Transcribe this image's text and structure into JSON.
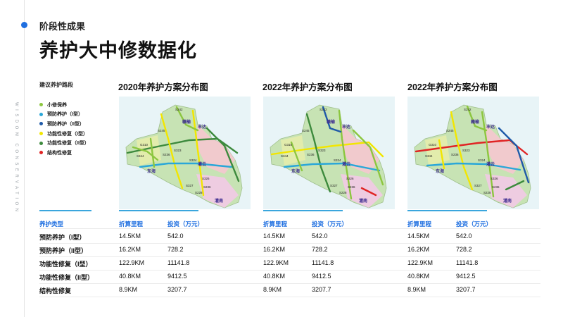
{
  "header": {
    "subtitle": "阶段性成果",
    "title": "养护大中修数据化",
    "side_text": "WISDOM CONSERVATION"
  },
  "legend": {
    "title": "建议养护路段",
    "items": [
      {
        "label": "小修保养",
        "color": "#8cc63f"
      },
      {
        "label": "预防养护（I型）",
        "color": "#2aa7d8"
      },
      {
        "label": "预防养护（II型）",
        "color": "#1f5aa8"
      },
      {
        "label": "功能性修复（I型）",
        "color": "#f2e600"
      },
      {
        "label": "功能性修复（II型）",
        "color": "#3d8a3d"
      },
      {
        "label": "结构性修复",
        "color": "#e02424"
      }
    ]
  },
  "maps": [
    {
      "title": "2020年养护方案分布图"
    },
    {
      "title": "2022年养护方案分布图"
    },
    {
      "title": "2022年养护方案分布图"
    }
  ],
  "map_labels": {
    "places": [
      "丰达",
      "东海",
      "灌云",
      "灌南",
      "赣榆"
    ],
    "roads": [
      "S242",
      "S245",
      "G310",
      "S236",
      "S344",
      "S323",
      "S324",
      "S326",
      "S327",
      "S228",
      "S236"
    ]
  },
  "table": {
    "type_header": "养护类型",
    "col_mileage": "折算里程",
    "col_invest": "投资（万元）",
    "rows": [
      {
        "type": "预防养护（I型）",
        "mileage": "14.5KM",
        "invest": "542.0"
      },
      {
        "type": "预防养护（II型）",
        "mileage": "16.2KM",
        "invest": "728.2"
      },
      {
        "type": "功能性修复（I型）",
        "mileage": "122.9KM",
        "invest": "11141.8"
      },
      {
        "type": "功能性修复（II型）",
        "mileage": "40.8KM",
        "invest": "9412.5"
      },
      {
        "type": "结构性修复",
        "mileage": "8.9KM",
        "invest": "3207.7"
      }
    ]
  }
}
